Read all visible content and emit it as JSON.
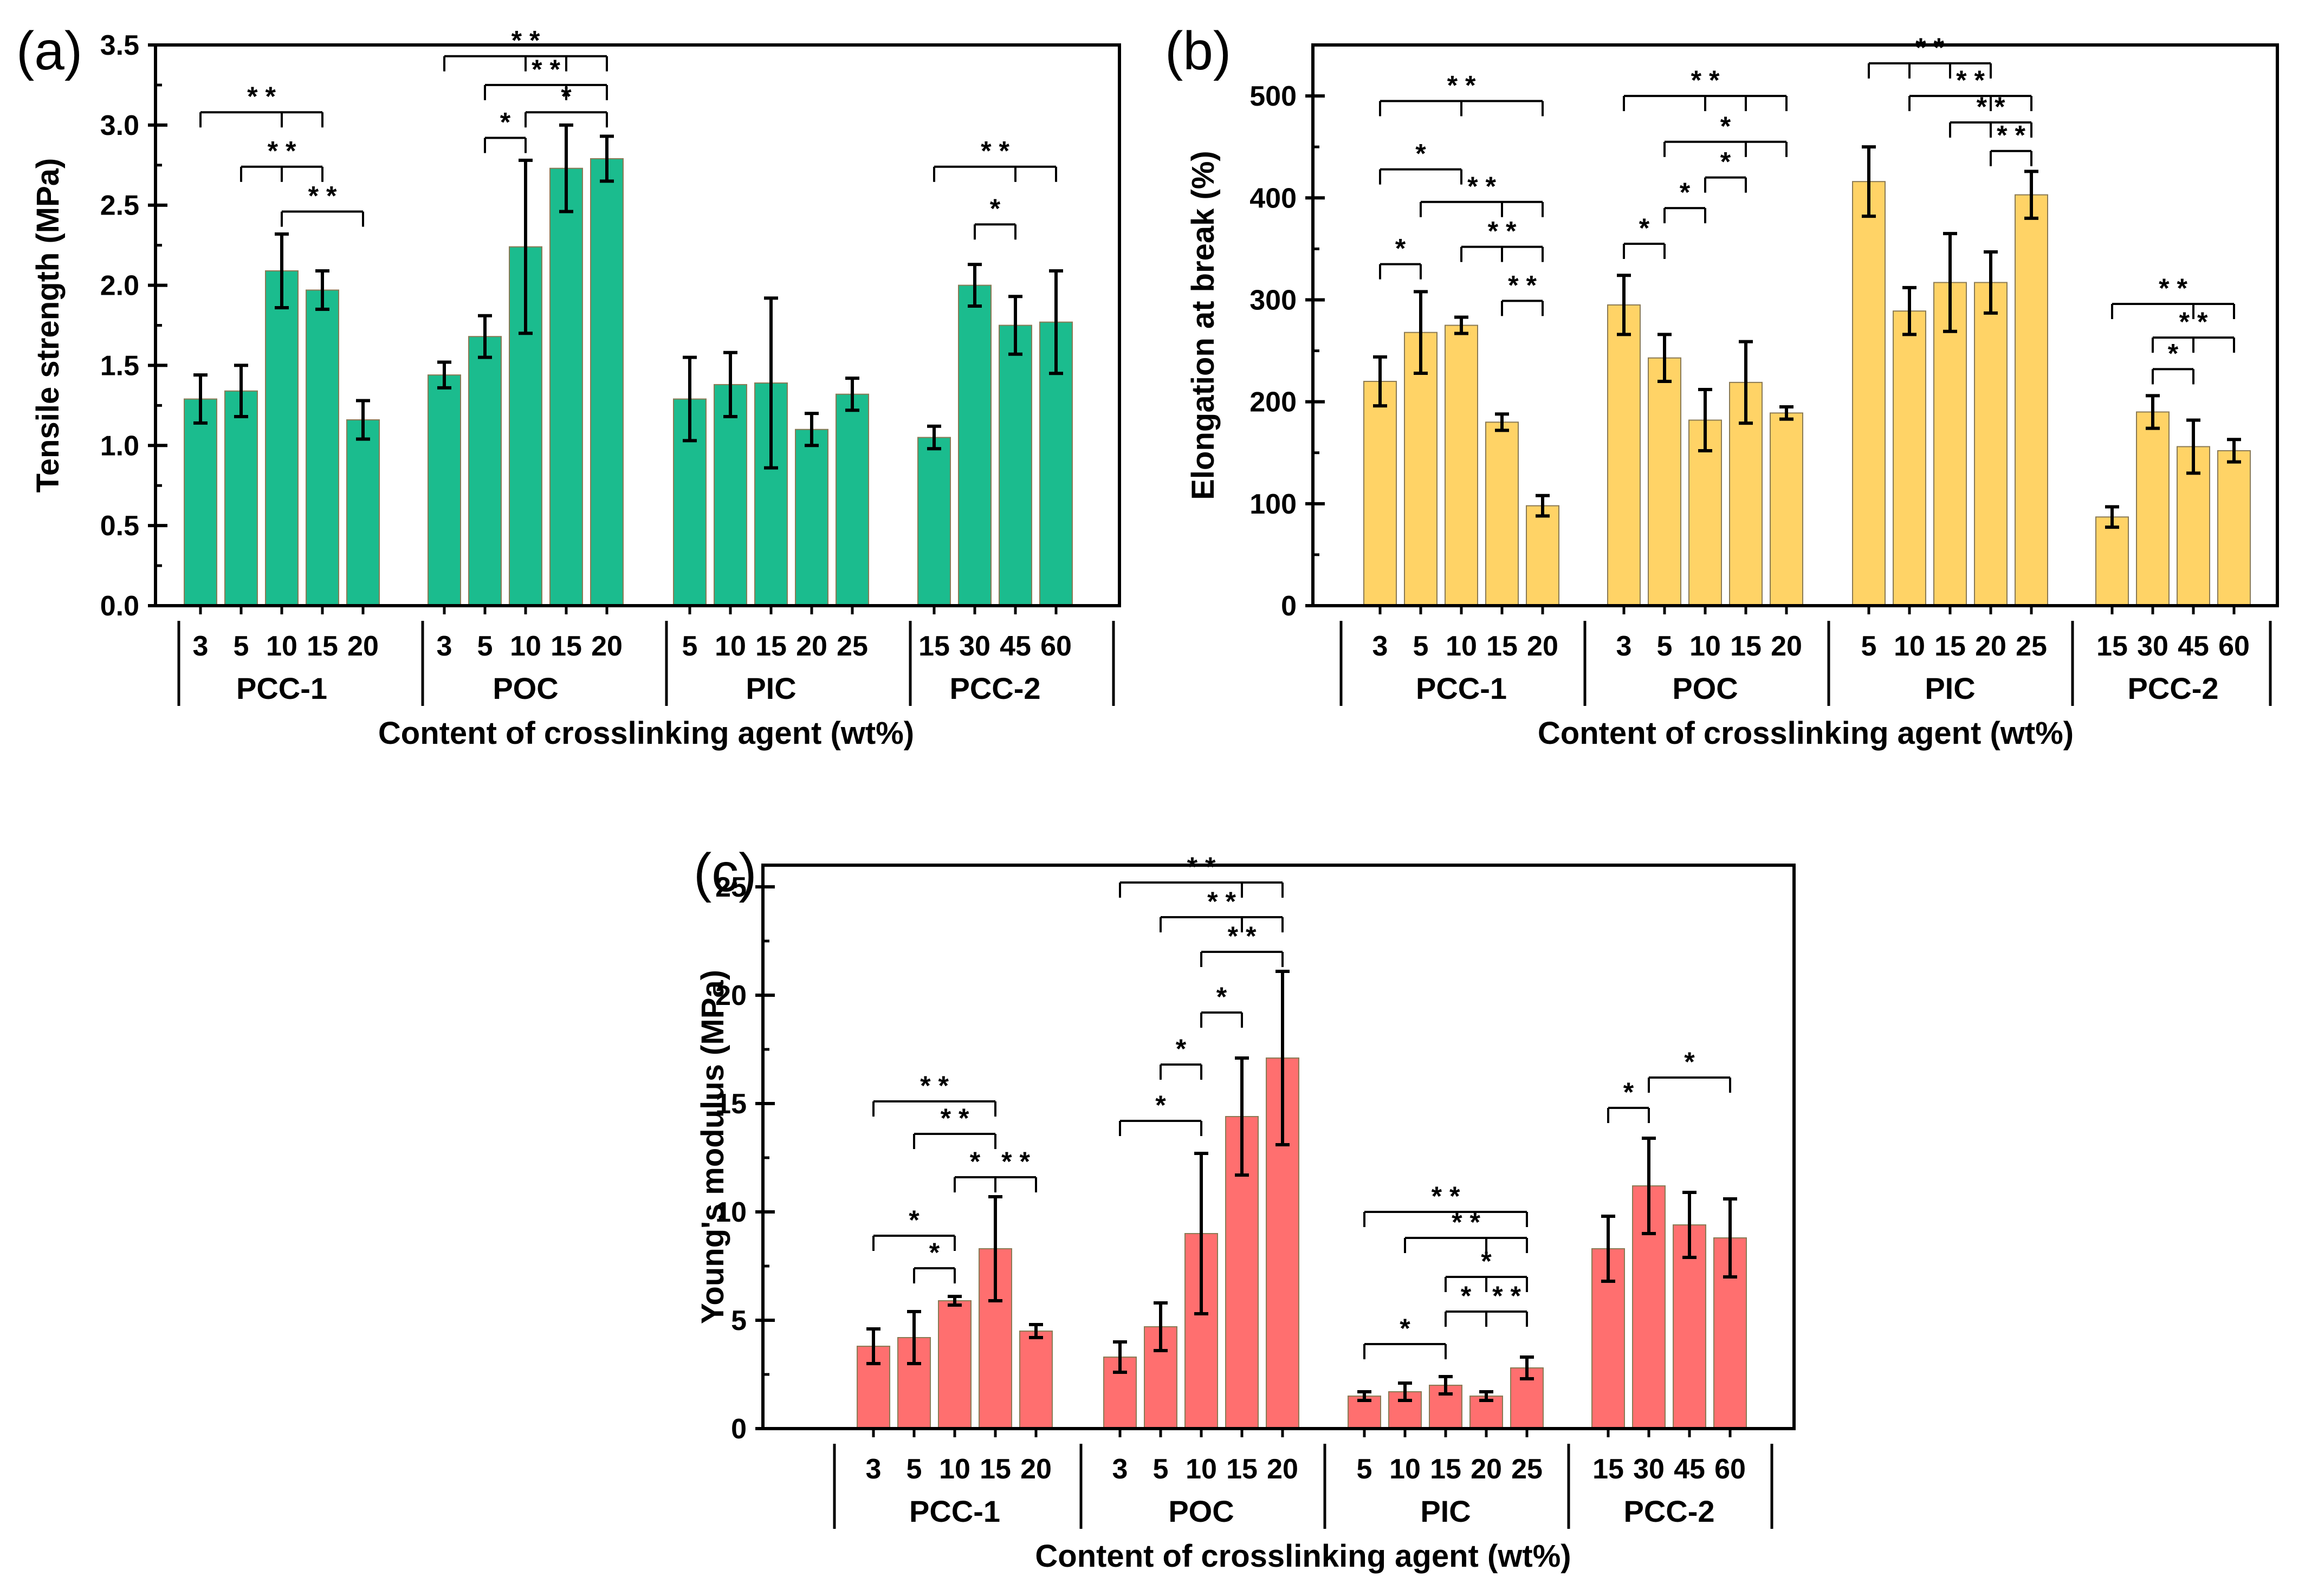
{
  "chart_data": [
    {
      "panel": "(a)",
      "type": "bar",
      "xlabel": "Content of crosslinking agent (wt%)",
      "ylabel": "Tensile strength (MPa)",
      "ylim": [
        0,
        3.5
      ],
      "yticks": [
        "0.0",
        "0.5",
        "1.0",
        "1.5",
        "2.0",
        "2.5",
        "3.0",
        "3.5"
      ],
      "color": "#1bbc8e",
      "groups": [
        {
          "name": "PCC-1",
          "categories": [
            "3",
            "5",
            "10",
            "15",
            "20"
          ],
          "values": [
            1.29,
            1.34,
            2.09,
            1.97,
            1.16
          ],
          "errors": [
            0.15,
            0.16,
            0.23,
            0.12,
            0.12
          ]
        },
        {
          "name": "POC",
          "categories": [
            "3",
            "5",
            "10",
            "15",
            "20"
          ],
          "values": [
            1.44,
            1.68,
            2.24,
            2.73,
            2.79
          ],
          "errors": [
            0.08,
            0.13,
            0.54,
            0.27,
            0.14
          ]
        },
        {
          "name": "PIC",
          "categories": [
            "5",
            "10",
            "15",
            "20",
            "25"
          ],
          "values": [
            1.29,
            1.38,
            1.39,
            1.1,
            1.32
          ],
          "errors": [
            0.26,
            0.2,
            0.53,
            0.1,
            0.1
          ]
        },
        {
          "name": "PCC-2",
          "categories": [
            "15",
            "30",
            "45",
            "60"
          ],
          "values": [
            1.05,
            2.0,
            1.75,
            1.77
          ],
          "errors": [
            0.07,
            0.13,
            0.18,
            0.32
          ]
        }
      ],
      "significance": [
        {
          "g": 0,
          "from": 0,
          "to": 3,
          "mid": 2,
          "y": 3.08,
          "label": "* *"
        },
        {
          "g": 0,
          "from": 1,
          "to": 3,
          "mid": 2,
          "y": 2.74,
          "label": "* *"
        },
        {
          "g": 0,
          "from": 2,
          "to": 4,
          "y": 2.46,
          "label": "* *"
        },
        {
          "g": 1,
          "from": 0,
          "to": 4,
          "mid": 2,
          "mid2": 3,
          "y": 3.43,
          "label": "* *"
        },
        {
          "g": 1,
          "from": 1,
          "to": 4,
          "mid": 3,
          "y": 3.25,
          "label": "* *"
        },
        {
          "g": 1,
          "from": 2,
          "to": 4,
          "y": 3.08,
          "label": "*"
        },
        {
          "g": 1,
          "from": 1,
          "to": 2,
          "y": 2.92,
          "label": "*"
        },
        {
          "g": 3,
          "from": 0,
          "to": 3,
          "mid": 2,
          "y": 2.74,
          "label": "* *"
        },
        {
          "g": 3,
          "from": 1,
          "to": 2,
          "y": 2.38,
          "label": "*"
        }
      ]
    },
    {
      "panel": "(b)",
      "type": "bar",
      "xlabel": "Content of crosslinking agent (wt%)",
      "ylabel": "Elongation at break (%)",
      "ylim": [
        0,
        550
      ],
      "yticks": [
        "0",
        "100",
        "200",
        "300",
        "400",
        "500"
      ],
      "color": "#ffd366",
      "groups": [
        {
          "name": "PCC-1",
          "categories": [
            "3",
            "5",
            "10",
            "15",
            "20"
          ],
          "values": [
            220,
            268,
            275,
            180,
            98
          ],
          "errors": [
            24,
            40,
            8,
            8,
            10
          ]
        },
        {
          "name": "POC",
          "categories": [
            "3",
            "5",
            "10",
            "15",
            "20"
          ],
          "values": [
            295,
            243,
            182,
            219,
            189
          ],
          "errors": [
            29,
            23,
            30,
            40,
            6
          ]
        },
        {
          "name": "PIC",
          "categories": [
            "5",
            "10",
            "15",
            "20",
            "25"
          ],
          "values": [
            416,
            289,
            317,
            317,
            403
          ],
          "errors": [
            34,
            23,
            48,
            30,
            23
          ]
        },
        {
          "name": "PCC-2",
          "categories": [
            "15",
            "30",
            "45",
            "60"
          ],
          "values": [
            87,
            190,
            156,
            152
          ],
          "errors": [
            10,
            16,
            26,
            11
          ]
        }
      ],
      "significance": [
        {
          "g": 0,
          "from": 0,
          "to": 4,
          "mid": 2,
          "y": 495,
          "label": "* *"
        },
        {
          "g": 0,
          "from": 0,
          "to": 2,
          "y": 428,
          "label": "*"
        },
        {
          "g": 0,
          "from": 1,
          "to": 4,
          "mid": 3,
          "y": 396,
          "label": "* *"
        },
        {
          "g": 0,
          "from": 2,
          "to": 4,
          "mid": 3,
          "y": 352,
          "label": "* *"
        },
        {
          "g": 0,
          "from": 0,
          "to": 1,
          "y": 335,
          "label": "*"
        },
        {
          "g": 0,
          "from": 3,
          "to": 4,
          "y": 299,
          "label": "* *"
        },
        {
          "g": 1,
          "from": 0,
          "to": 4,
          "mid": 2,
          "mid2": 3,
          "y": 500,
          "label": "* *"
        },
        {
          "g": 1,
          "from": 1,
          "to": 4,
          "mid": 3,
          "y": 455,
          "label": "*"
        },
        {
          "g": 1,
          "from": 2,
          "to": 3,
          "y": 420,
          "label": "*"
        },
        {
          "g": 1,
          "from": 1,
          "to": 2,
          "y": 390,
          "label": "*"
        },
        {
          "g": 1,
          "from": 0,
          "to": 1,
          "y": 355,
          "label": "*"
        },
        {
          "g": 2,
          "from": 0,
          "to": 3,
          "mid": 1,
          "mid2": 2,
          "y": 532,
          "label": "* *"
        },
        {
          "g": 2,
          "from": 1,
          "to": 4,
          "mid": 3,
          "y": 500,
          "label": "* *"
        },
        {
          "g": 2,
          "from": 2,
          "to": 4,
          "mid": 3,
          "y": 474,
          "label": "* *"
        },
        {
          "g": 2,
          "from": 3,
          "to": 4,
          "y": 446,
          "label": "* *"
        },
        {
          "g": 3,
          "from": 0,
          "to": 3,
          "mid": 2,
          "y": 296,
          "label": "* *"
        },
        {
          "g": 3,
          "from": 1,
          "to": 3,
          "mid": 2,
          "y": 263,
          "label": "* *"
        },
        {
          "g": 3,
          "from": 1,
          "to": 2,
          "y": 232,
          "label": "*"
        }
      ]
    },
    {
      "panel": "(c)",
      "type": "bar",
      "xlabel": "Content of crosslinking agent (wt%)",
      "ylabel": "Young's modulus (MPa)",
      "ylim": [
        0,
        26
      ],
      "yticks": [
        "0",
        "5",
        "10",
        "15",
        "20",
        "25"
      ],
      "color": "#ff6f6f",
      "groups": [
        {
          "name": "PCC-1",
          "categories": [
            "3",
            "5",
            "10",
            "15",
            "20"
          ],
          "values": [
            3.8,
            4.2,
            5.9,
            8.3,
            4.5
          ],
          "errors": [
            0.8,
            1.2,
            0.2,
            2.4,
            0.3
          ]
        },
        {
          "name": "POC",
          "categories": [
            "3",
            "5",
            "10",
            "15",
            "20"
          ],
          "values": [
            3.3,
            4.7,
            9.0,
            14.4,
            17.1
          ],
          "errors": [
            0.7,
            1.1,
            3.7,
            2.7,
            4.0
          ]
        },
        {
          "name": "PIC",
          "categories": [
            "5",
            "10",
            "15",
            "20",
            "25"
          ],
          "values": [
            1.5,
            1.7,
            2.0,
            1.5,
            2.8
          ],
          "errors": [
            0.2,
            0.4,
            0.4,
            0.2,
            0.5
          ]
        },
        {
          "name": "PCC-2",
          "categories": [
            "15",
            "30",
            "45",
            "60"
          ],
          "values": [
            8.3,
            11.2,
            9.4,
            8.8
          ],
          "errors": [
            1.5,
            2.2,
            1.5,
            1.8
          ]
        }
      ],
      "significance": [
        {
          "g": 0,
          "from": 0,
          "to": 3,
          "y": 15.1,
          "label": "* *"
        },
        {
          "g": 0,
          "from": 1,
          "to": 3,
          "y": 13.6,
          "label": "* *"
        },
        {
          "g": 0,
          "from": 2,
          "to": 3,
          "y": 11.6,
          "label": "*"
        },
        {
          "g": 0,
          "from": 3,
          "to": 4,
          "y": 11.6,
          "label": "* *"
        },
        {
          "g": 0,
          "from": 0,
          "to": 2,
          "y": 8.9,
          "label": "*"
        },
        {
          "g": 0,
          "from": 1,
          "to": 2,
          "y": 7.4,
          "label": "*"
        },
        {
          "g": 1,
          "from": 0,
          "to": 4,
          "mid": 3,
          "y": 25.2,
          "label": "* *"
        },
        {
          "g": 1,
          "from": 1,
          "to": 4,
          "mid": 3,
          "y": 23.6,
          "label": "* *"
        },
        {
          "g": 1,
          "from": 2,
          "to": 4,
          "y": 22.0,
          "label": "* *"
        },
        {
          "g": 1,
          "from": 2,
          "to": 3,
          "y": 19.2,
          "label": "*"
        },
        {
          "g": 1,
          "from": 1,
          "to": 2,
          "y": 16.8,
          "label": "*"
        },
        {
          "g": 1,
          "from": 0,
          "to": 2,
          "y": 14.2,
          "label": "*"
        },
        {
          "g": 2,
          "from": 0,
          "to": 4,
          "y": 10.0,
          "label": "* *"
        },
        {
          "g": 2,
          "from": 1,
          "to": 4,
          "mid": 3,
          "y": 8.8,
          "label": "* *"
        },
        {
          "g": 2,
          "from": 2,
          "to": 4,
          "mid": 3,
          "y": 7.0,
          "label": "*"
        },
        {
          "g": 2,
          "from": 0,
          "to": 2,
          "y": 3.9,
          "label": "*"
        },
        {
          "g": 2,
          "from": 2,
          "to": 3,
          "y": 5.4,
          "label": "*"
        },
        {
          "g": 2,
          "from": 3,
          "to": 4,
          "y": 5.4,
          "label": "* *"
        },
        {
          "g": 3,
          "from": 0,
          "to": 1,
          "y": 14.8,
          "label": "*"
        },
        {
          "g": 3,
          "from": 1,
          "to": 3,
          "y": 16.2,
          "label": "*"
        }
      ]
    }
  ]
}
